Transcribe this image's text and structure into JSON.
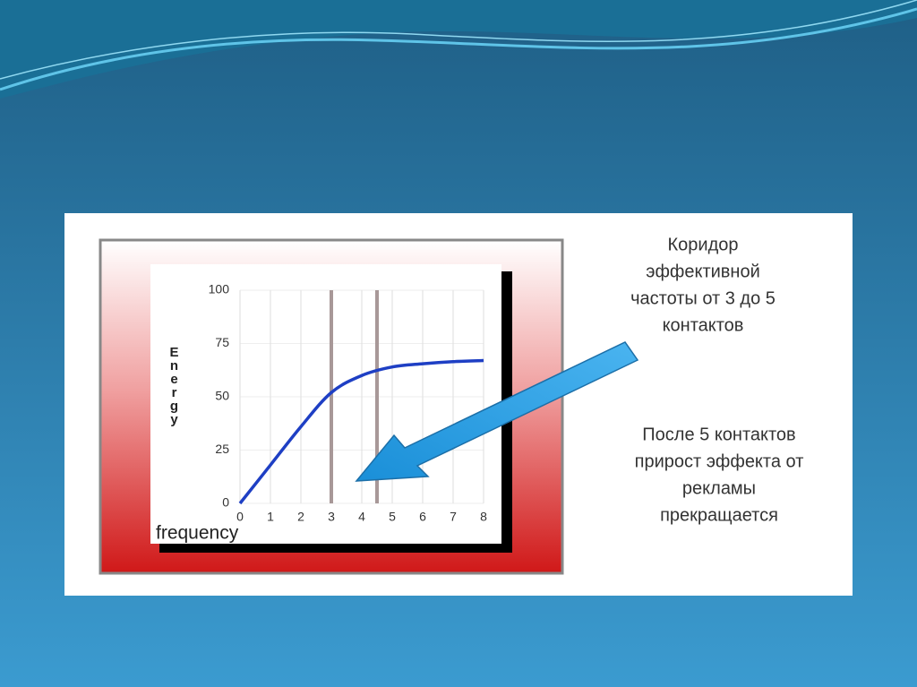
{
  "chart_data": {
    "type": "line",
    "ylabel": "Energy",
    "xlabel": "frequency",
    "x": [
      0,
      1,
      2,
      3,
      4,
      5,
      6,
      7,
      8
    ],
    "series": [
      {
        "color": "#1e3fc4",
        "values": [
          0,
          18,
          36,
          52,
          60,
          64,
          65.5,
          66.5,
          67
        ]
      }
    ],
    "xlim": [
      0,
      8
    ],
    "xticks": [
      0,
      1,
      2,
      3,
      4,
      5,
      6,
      7,
      8
    ],
    "ylim": [
      0,
      100
    ],
    "yticks": [
      0,
      25,
      50,
      75,
      100
    ],
    "grid": true,
    "vlines": [
      3,
      4.5
    ],
    "vline_color": "#a89898",
    "annotations": [
      [
        "Коридор",
        "эффективной",
        "частоты от 3 до 5",
        "контактов"
      ],
      [
        "После 5 контактов",
        "прирост эффекта от",
        "рекламы",
        "прекращается"
      ]
    ]
  }
}
